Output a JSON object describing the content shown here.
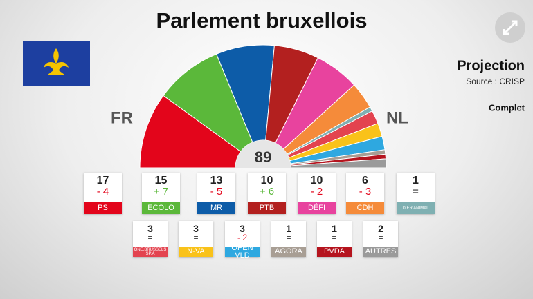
{
  "chart_data": {
    "type": "hemicycle",
    "title": "Parlement bruxellois",
    "total": 89,
    "left_label": "FR",
    "right_label": "NL",
    "subtitle": "Projection",
    "source": "Source : CRISP",
    "status": "Complet",
    "categories": [
      "PS",
      "ECOLO",
      "MR",
      "PTB",
      "DéFI",
      "CDH",
      "DIER ANIMAL",
      "ONE.BRUSSELS SP.A",
      "N-VA",
      "OPEN VLD",
      "AGORA",
      "PVDA",
      "AUTRES"
    ],
    "values": [
      17,
      15,
      13,
      10,
      10,
      6,
      1,
      3,
      3,
      3,
      1,
      1,
      2
    ],
    "changes": [
      "- 4",
      "+ 7",
      "- 5",
      "+ 6",
      "- 2",
      "- 3",
      "=",
      "=",
      "=",
      "- 2",
      "=",
      "=",
      "="
    ],
    "colors": [
      "#e3051b",
      "#5bb83a",
      "#0d5ca8",
      "#b3201f",
      "#e8439e",
      "#f58b3a",
      "#7fb0b2",
      "#e3434f",
      "#f9c21a",
      "#2ea8e0",
      "#a89e94",
      "#b5141e",
      "#9a9a9a"
    ]
  }
}
